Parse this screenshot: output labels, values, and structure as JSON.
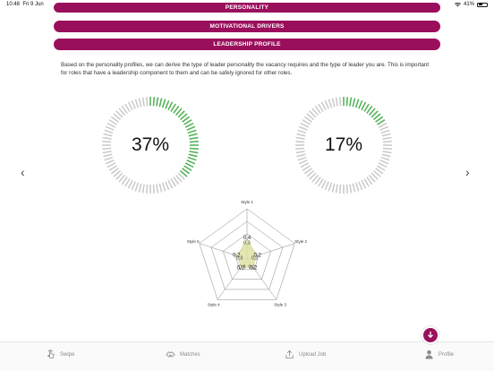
{
  "status_bar": {
    "time": "10:48",
    "date": "Fri 9 Jun",
    "battery": "41%"
  },
  "sections": {
    "personality": "PERSONALITY",
    "motivational": "MOTIVATIONAL DRIVERS",
    "leadership": "LEADERSHIP PROFILE"
  },
  "description": "Based on the personality profiles, we can derive the type of leader personality the vacancy requires and the type of leader you are. This is important for roles that have a leadership component to them and can be safely ignored for other roles.",
  "gauges": [
    {
      "label": "37%",
      "fraction": 0.37,
      "active_color": "#4caf50",
      "inactive_color": "#c9c9c9"
    },
    {
      "label": "17%",
      "fraction": 0.17,
      "active_color": "#4caf50",
      "inactive_color": "#c9c9c9"
    }
  ],
  "radar": {
    "axes": [
      "Style 1",
      "Style 2",
      "Style 3",
      "Style 4",
      "Style 5"
    ],
    "values": [
      0.4,
      0.2,
      0.2,
      0.2,
      0.2
    ],
    "value_labels": [
      "0,4",
      "0,2",
      "0,2",
      "0,2",
      "0,2"
    ],
    "overlap_labels": [
      "0,3",
      "0,2",
      "0,2",
      "0,3",
      "0,3"
    ],
    "max": 1.0,
    "fill_color": "#dfe3a6",
    "grid_color": "#888888"
  },
  "nav": {
    "prev": "‹",
    "next": "›"
  },
  "tabs": [
    {
      "label": "Swipe",
      "icon": "swipe-icon"
    },
    {
      "label": "Matches",
      "icon": "handshake-icon"
    },
    {
      "label": "Upload Job",
      "icon": "upload-icon"
    },
    {
      "label": "Profile",
      "icon": "person-icon"
    }
  ],
  "accent_color": "#9a0f5c"
}
